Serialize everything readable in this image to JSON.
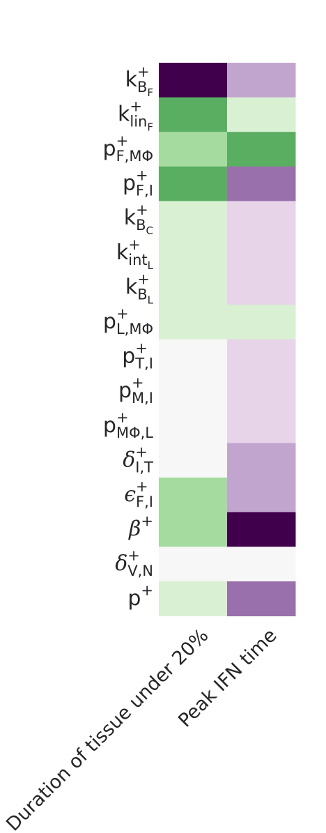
{
  "chart_data": {
    "type": "heatmap",
    "columns": [
      "Duration of tissue under 20%",
      "Peak IFN time"
    ],
    "rows": [
      {
        "base": "k",
        "sup": "+",
        "sub": "B",
        "subsub": "F",
        "italic": false
      },
      {
        "base": "k",
        "sup": "+",
        "sub": "lin",
        "subsub": "F",
        "italic": false
      },
      {
        "base": "p",
        "sup": "+",
        "sub": "F,MΦ",
        "subsub": "",
        "italic": false
      },
      {
        "base": "p",
        "sup": "+",
        "sub": "F,I",
        "subsub": "",
        "italic": false
      },
      {
        "base": "k",
        "sup": "+",
        "sub": "B",
        "subsub": "C",
        "italic": false
      },
      {
        "base": "k",
        "sup": "+",
        "sub": "int",
        "subsub": "L",
        "italic": false
      },
      {
        "base": "k",
        "sup": "+",
        "sub": "B",
        "subsub": "L",
        "italic": false
      },
      {
        "base": "p",
        "sup": "+",
        "sub": "L,MΦ",
        "subsub": "",
        "italic": false
      },
      {
        "base": "p",
        "sup": "+",
        "sub": "T,I",
        "subsub": "",
        "italic": false
      },
      {
        "base": "p",
        "sup": "+",
        "sub": "M,I",
        "subsub": "",
        "italic": false
      },
      {
        "base": "p",
        "sup": "+",
        "sub": "MΦ,L",
        "subsub": "",
        "italic": false
      },
      {
        "base": "δ",
        "sup": "+",
        "sub": "I,T",
        "subsub": "",
        "italic": true
      },
      {
        "base": "ϵ",
        "sup": "+",
        "sub": "F,I",
        "subsub": "",
        "italic": true
      },
      {
        "base": "β",
        "sup": "+",
        "sub": "",
        "subsub": "",
        "italic": true
      },
      {
        "base": "δ",
        "sup": "+",
        "sub": "V,N",
        "subsub": "",
        "italic": true
      },
      {
        "base": "p",
        "sup": "+",
        "sub": "",
        "subsub": "",
        "italic": false
      }
    ],
    "values": [
      [
        -3,
        1
      ],
      [
        -2,
        -0.5
      ],
      [
        -1,
        -2
      ],
      [
        -2,
        1.5
      ],
      [
        -0.5,
        0.5
      ],
      [
        -0.5,
        0.5
      ],
      [
        -0.5,
        0.5
      ],
      [
        -0.5,
        -0.5
      ],
      [
        0,
        0.5
      ],
      [
        0,
        0.5
      ],
      [
        0,
        0.5
      ],
      [
        0,
        1
      ],
      [
        -1,
        1
      ],
      [
        -1,
        3
      ],
      [
        0,
        0
      ],
      [
        -0.5,
        1.5
      ]
    ],
    "value_range": [
      -3,
      3
    ],
    "colormap": "PRGn_r",
    "colors": {
      "3": "#40004b",
      "1.5": "#9970ab",
      "1": "#c2a5cf",
      "0.5": "#e7d4e8",
      "0": "#f7f7f7",
      "-0.5": "#d9f0d3",
      "-1": "#a6dba0",
      "-2": "#5aae61",
      "-3": "#40004b"
    }
  }
}
